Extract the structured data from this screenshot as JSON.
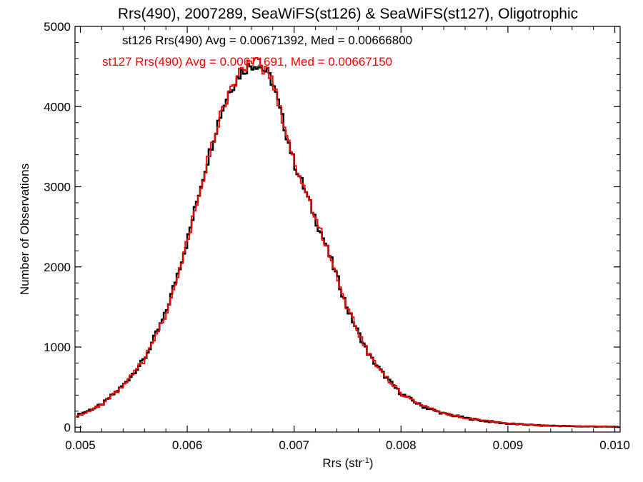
{
  "chart_data": {
    "type": "line",
    "title": "Rrs(490), 2007289, SeaWiFS(st126) & SeaWiFS(st127), Oligotrophic",
    "xlabel": "Rrs (str",
    "xlabel_sup": "-1",
    "xlabel_close": ")",
    "ylabel": "Number of Observations",
    "xlim": [
      0.00495,
      0.01005
    ],
    "ylim": [
      -60,
      5000
    ],
    "x_ticks": [
      0.005,
      0.006,
      0.007,
      0.008,
      0.009,
      0.01
    ],
    "x_tick_labels": [
      "0.005",
      "0.006",
      "0.007",
      "0.008",
      "0.009",
      "0.010"
    ],
    "y_ticks": [
      0,
      1000,
      2000,
      3000,
      4000,
      5000
    ],
    "y_tick_labels": [
      "0",
      "1000",
      "2000",
      "3000",
      "4000",
      "5000"
    ],
    "grid": false,
    "bin_width": 2e-05,
    "annotations": [
      {
        "text": "st126 Rrs(490) Avg = 0.00671392, Med = 0.00666800",
        "color": "#000000"
      },
      {
        "text": "st127 Rrs(490) Avg = 0.00671691, Med = 0.00667150",
        "color": "#ff0000"
      }
    ],
    "series": [
      {
        "name": "st126",
        "color": "#000000",
        "x": [
          0.00496,
          0.0052,
          0.0054,
          0.0056,
          0.0058,
          0.006,
          0.0061,
          0.0062,
          0.0063,
          0.0064,
          0.0065,
          0.00655,
          0.0066,
          0.00665,
          0.0067,
          0.00675,
          0.0068,
          0.0069,
          0.007,
          0.0071,
          0.0072,
          0.0073,
          0.0074,
          0.0075,
          0.0076,
          0.0077,
          0.0078,
          0.0079,
          0.008,
          0.0082,
          0.0084,
          0.0086,
          0.0088,
          0.009,
          0.0093,
          0.0096,
          0.01004
        ],
        "y": [
          140,
          280,
          520,
          850,
          1420,
          2320,
          2870,
          3380,
          3860,
          4210,
          4420,
          4480,
          4520,
          4530,
          4480,
          4420,
          4300,
          3800,
          3300,
          2960,
          2600,
          2260,
          1880,
          1470,
          1180,
          900,
          720,
          560,
          420,
          260,
          170,
          115,
          75,
          45,
          22,
          12,
          5
        ]
      },
      {
        "name": "st127",
        "color": "#ff0000",
        "x": [
          0.00496,
          0.0052,
          0.0054,
          0.0056,
          0.0058,
          0.006,
          0.0061,
          0.0062,
          0.0063,
          0.0064,
          0.0065,
          0.00655,
          0.0066,
          0.00665,
          0.0067,
          0.00675,
          0.0068,
          0.0069,
          0.007,
          0.0071,
          0.0072,
          0.0073,
          0.0074,
          0.0075,
          0.0076,
          0.0077,
          0.0078,
          0.0079,
          0.008,
          0.0082,
          0.0084,
          0.0086,
          0.0088,
          0.009,
          0.0093,
          0.0096,
          0.01004
        ],
        "y": [
          135,
          275,
          510,
          840,
          1410,
          2310,
          2860,
          3370,
          3850,
          4200,
          4430,
          4490,
          4530,
          4540,
          4490,
          4430,
          4310,
          3810,
          3310,
          2970,
          2610,
          2270,
          1890,
          1480,
          1190,
          910,
          730,
          565,
          425,
          265,
          172,
          118,
          78,
          47,
          23,
          13,
          6
        ]
      }
    ]
  }
}
